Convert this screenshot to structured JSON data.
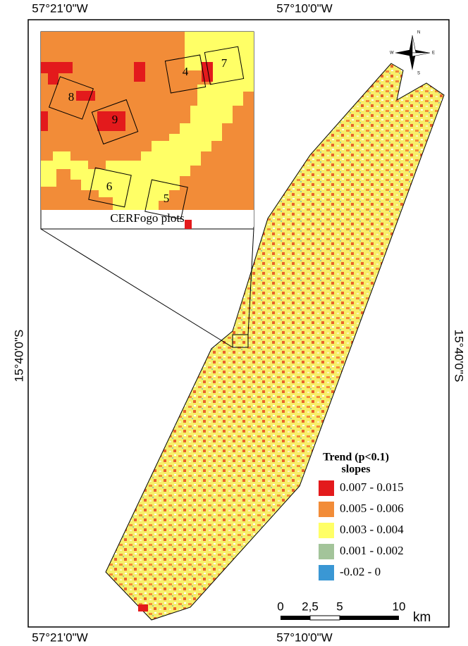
{
  "coordinates": {
    "top": [
      "57°21'0\"W",
      "57°10'0\"W"
    ],
    "bottom": [
      "57°21'0\"W",
      "57°10'0\"W"
    ],
    "left": "15°40'0\"S",
    "right": "15°40'0\"S"
  },
  "inset": {
    "caption": "CERFogo plots",
    "plots": [
      "4",
      "7",
      "8",
      "9",
      "6",
      "5"
    ]
  },
  "compass": {
    "n": "N",
    "s": "S",
    "e": "E",
    "w": "W"
  },
  "legend": {
    "title": "Trend (p<0.1)",
    "subtitle": "slopes",
    "items": [
      {
        "label": "0.007 - 0.015",
        "color": "#e31a1c"
      },
      {
        "label": "0.005 - 0.006",
        "color": "#f28c38"
      },
      {
        "label": "0.003 - 0.004",
        "color": "#ffff66"
      },
      {
        "label": "0.001 - 0.002",
        "color": "#a3c49a"
      },
      {
        "label": "-0.02 - 0",
        "color": "#3a97d4"
      }
    ]
  },
  "scale_bar": {
    "labels": [
      "0",
      "2,5",
      "5",
      "10"
    ],
    "unit": "km"
  }
}
